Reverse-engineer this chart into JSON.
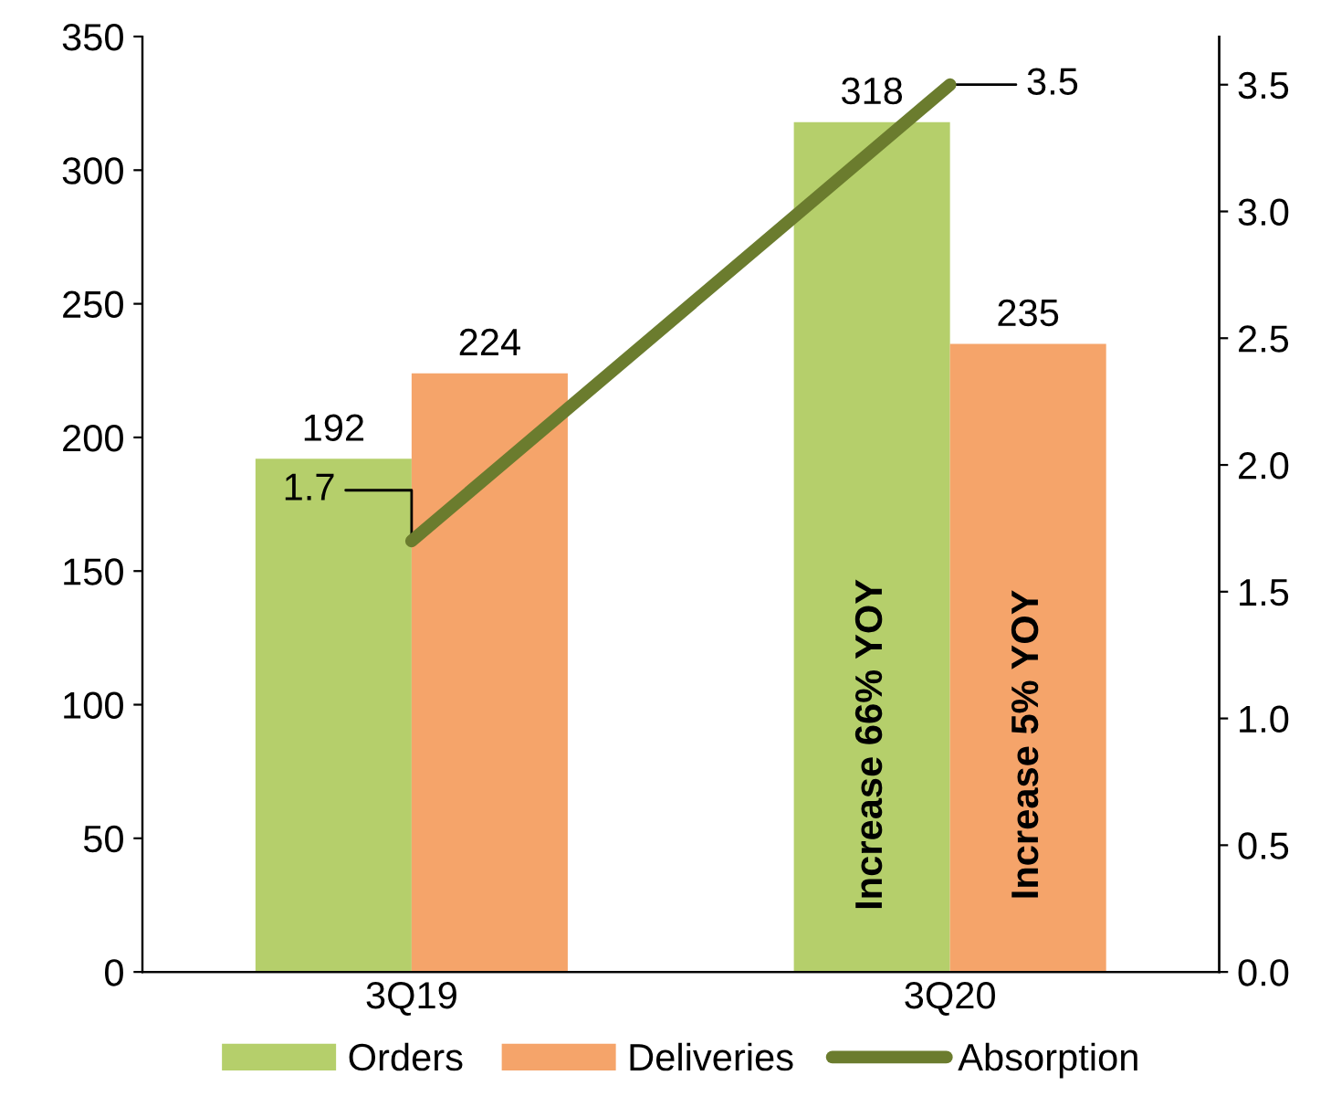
{
  "chart_data": {
    "type": "bar",
    "categories": [
      "3Q19",
      "3Q20"
    ],
    "series": [
      {
        "name": "Orders",
        "color": "#b5cf6b",
        "values": [
          192,
          318
        ]
      },
      {
        "name": "Deliveries",
        "color": "#f5a46a",
        "values": [
          224,
          235
        ]
      },
      {
        "name": "Absorption",
        "type": "line",
        "axis": "y2",
        "color": "#6b7c2e",
        "values": [
          1.7,
          3.5
        ]
      }
    ],
    "ylim": [
      0,
      350
    ],
    "yticks": [
      0,
      50,
      100,
      150,
      200,
      250,
      300,
      350
    ],
    "y2lim": [
      0,
      3.69
    ],
    "y2ticks": [
      {
        "value": 0,
        "label": "0.0"
      },
      {
        "value": 0.5,
        "label": "0.5"
      },
      {
        "value": 1,
        "label": "1.0"
      },
      {
        "value": 1.5,
        "label": "1.5"
      },
      {
        "value": 2,
        "label": "2.0"
      },
      {
        "value": 2.5,
        "label": "2.5"
      },
      {
        "value": 3,
        "label": "3.0"
      },
      {
        "value": 3.5,
        "label": "3.5"
      }
    ],
    "annotations": [
      {
        "text": "Increase 66% YOY",
        "x": "3Q20",
        "y": 85
      },
      {
        "text": "Increase 5% YOY",
        "x": "3Q20",
        "y": 85
      }
    ],
    "data_labels": true,
    "grid": false,
    "legend": "bottom"
  }
}
